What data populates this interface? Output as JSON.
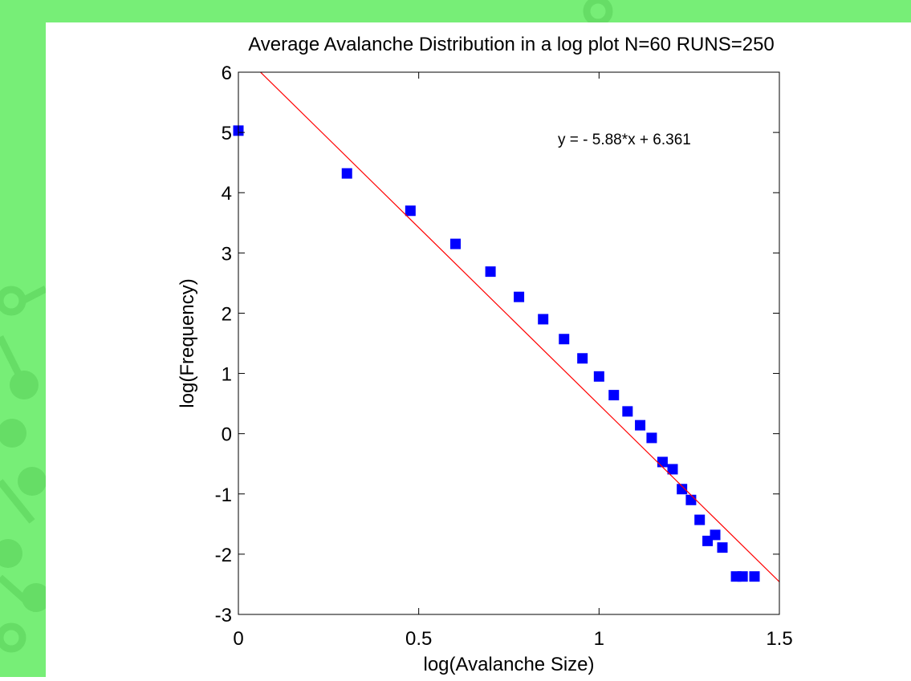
{
  "chart_data": {
    "type": "scatter",
    "title": "Average Avalanche Distribution in a log plot N=60 RUNS=250",
    "x_label": "log(Avalanche Size)",
    "y_label": "log(Frequency)",
    "annotation": "y = - 5.88*x + 6.361",
    "xlim": [
      0,
      1.5
    ],
    "ylim": [
      -3,
      6
    ],
    "xticks": [
      0,
      0.5,
      1,
      1.5
    ],
    "yticks": [
      -3,
      -2,
      -1,
      0,
      1,
      2,
      3,
      4,
      5,
      6
    ],
    "grid": false,
    "series": [
      {
        "color": "#0000ff",
        "marker": "square",
        "x": [
          0,
          0.301,
          0.477,
          0.602,
          0.699,
          0.778,
          0.845,
          0.903,
          0.954,
          1.0,
          1.041,
          1.079,
          1.114,
          1.146,
          1.176,
          1.204,
          1.23,
          1.255,
          1.279,
          1.301,
          1.322,
          1.342,
          1.38,
          1.398,
          1.431
        ],
        "values": [
          5.03,
          4.32,
          3.7,
          3.15,
          2.69,
          2.27,
          1.9,
          1.57,
          1.25,
          0.95,
          0.64,
          0.37,
          0.14,
          -0.07,
          -0.47,
          -0.59,
          -0.92,
          -1.1,
          -1.43,
          -1.78,
          -1.68,
          -1.89,
          -2.37,
          -2.37,
          -2.37
        ]
      },
      {
        "color": "#ff0000",
        "marker": "none",
        "x": [
          0,
          1.5
        ],
        "values": [
          6.361,
          -2.459
        ]
      }
    ]
  }
}
